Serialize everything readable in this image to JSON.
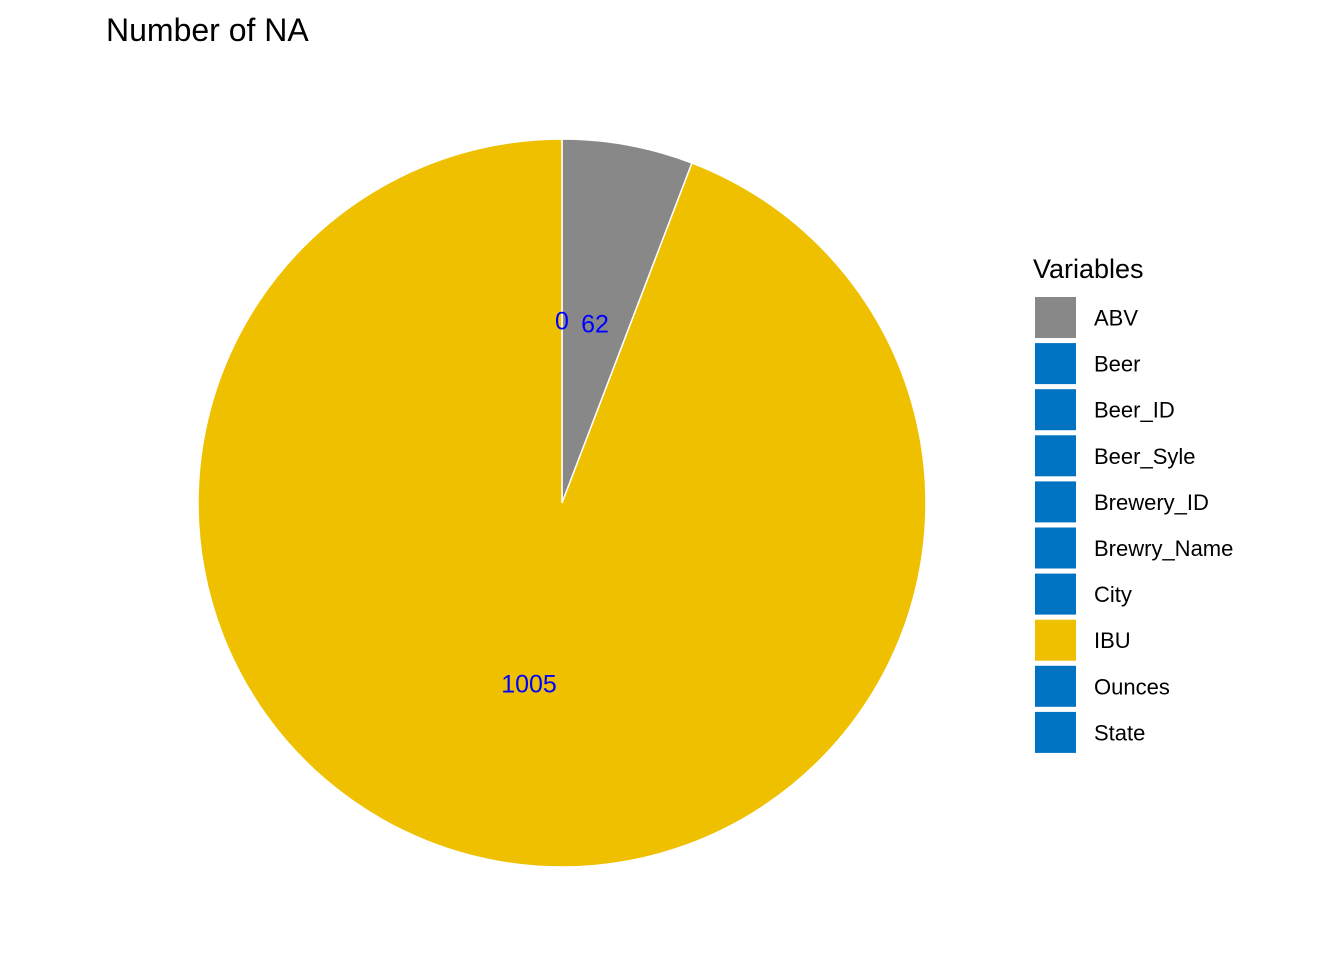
{
  "chart_data": {
    "type": "pie",
    "title": "Number of NA",
    "legend_title": "Variables",
    "legend_position": "right",
    "label_color": "#0000FF",
    "start_angle_deg": 0,
    "direction": "clockwise",
    "slices": [
      {
        "label": "ABV",
        "value": 62,
        "color": "#888888"
      },
      {
        "label": "Beer",
        "value": 0,
        "color": "#0072C2"
      },
      {
        "label": "Beer_ID",
        "value": 0,
        "color": "#0072C2"
      },
      {
        "label": "Beer_Syle",
        "value": 0,
        "color": "#0072C2"
      },
      {
        "label": "Brewery_ID",
        "value": 0,
        "color": "#0072C2"
      },
      {
        "label": "Brewry_Name",
        "value": 0,
        "color": "#0072C2"
      },
      {
        "label": "City",
        "value": 0,
        "color": "#0072C2"
      },
      {
        "label": "IBU",
        "value": 1005,
        "color": "#EEC000"
      },
      {
        "label": "Ounces",
        "value": 0,
        "color": "#0072C2"
      },
      {
        "label": "State",
        "value": 0,
        "color": "#0072C2"
      }
    ],
    "visible_labels": [
      {
        "text": "0",
        "slice": "Beer"
      },
      {
        "text": "62",
        "slice": "ABV"
      },
      {
        "text": "1005",
        "slice": "IBU"
      }
    ]
  }
}
